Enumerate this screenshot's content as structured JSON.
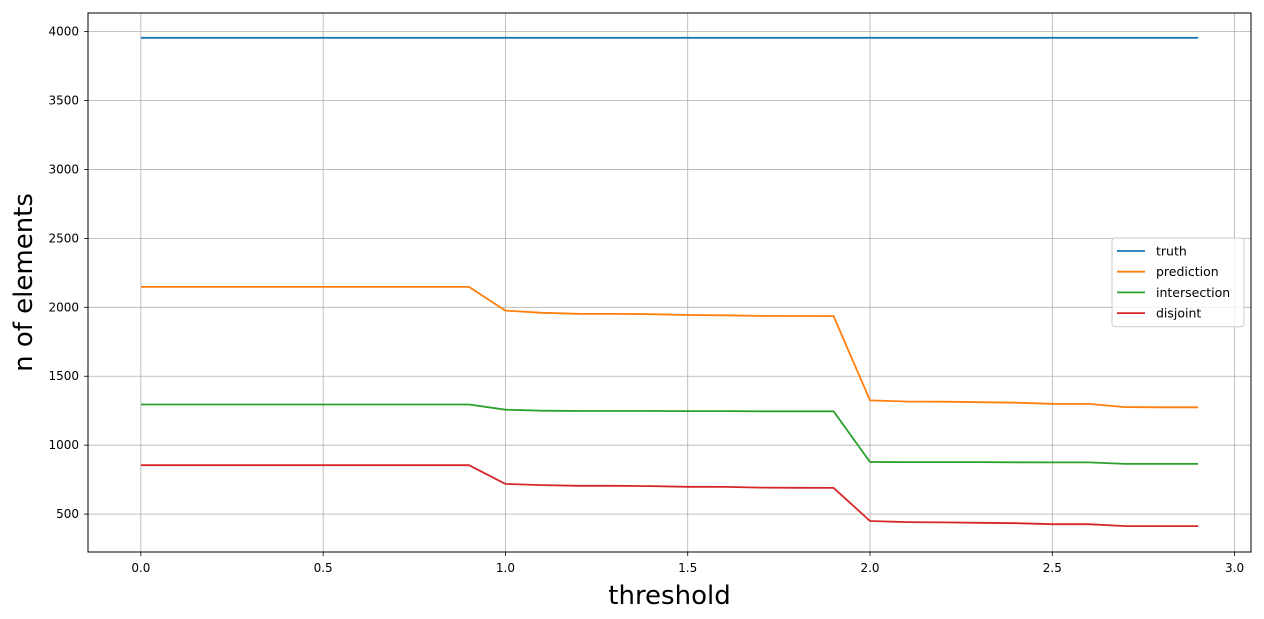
{
  "chart_data": {
    "type": "line",
    "title": "",
    "xlabel": "threshold",
    "ylabel": "n of elements",
    "xlim": [
      -0.145,
      3.045
    ],
    "ylim": [
      225,
      4135
    ],
    "xticks": [
      0.0,
      0.5,
      1.0,
      1.5,
      2.0,
      2.5,
      3.0
    ],
    "xtick_labels": [
      "0.0",
      "0.5",
      "1.0",
      "1.5",
      "2.0",
      "2.5",
      "3.0"
    ],
    "yticks": [
      500,
      1000,
      1500,
      2000,
      2500,
      3000,
      3500,
      4000
    ],
    "ytick_labels": [
      "500",
      "1000",
      "1500",
      "2000",
      "2500",
      "3000",
      "3500",
      "4000"
    ],
    "grid": true,
    "legend_position": "center-right",
    "x": [
      0.0,
      0.1,
      0.2,
      0.3,
      0.4,
      0.5,
      0.6,
      0.7,
      0.8,
      0.9,
      1.0,
      1.1,
      1.2,
      1.3,
      1.4,
      1.5,
      1.6,
      1.7,
      1.8,
      1.9,
      2.0,
      2.1,
      2.2,
      2.3,
      2.4,
      2.5,
      2.6,
      2.7,
      2.8,
      2.9
    ],
    "series": [
      {
        "name": "truth",
        "color": "#1f77b4",
        "values": [
          3955,
          3955,
          3955,
          3955,
          3955,
          3955,
          3955,
          3955,
          3955,
          3955,
          3955,
          3955,
          3955,
          3955,
          3955,
          3955,
          3955,
          3955,
          3955,
          3955,
          3955,
          3955,
          3955,
          3955,
          3955,
          3955,
          3955,
          3955,
          3955,
          3955
        ]
      },
      {
        "name": "prediction",
        "color": "#ff7f0e",
        "values": [
          2148,
          2148,
          2148,
          2148,
          2148,
          2148,
          2148,
          2148,
          2148,
          2148,
          1976,
          1960,
          1953,
          1952,
          1950,
          1944,
          1942,
          1938,
          1937,
          1936,
          1325,
          1317,
          1315,
          1312,
          1308,
          1300,
          1299,
          1276,
          1275,
          1275
        ]
      },
      {
        "name": "intersection",
        "color": "#2ca02c",
        "values": [
          1295,
          1295,
          1295,
          1295,
          1295,
          1295,
          1295,
          1295,
          1295,
          1295,
          1257,
          1250,
          1248,
          1248,
          1248,
          1247,
          1247,
          1246,
          1246,
          1246,
          878,
          877,
          877,
          877,
          876,
          875,
          875,
          864,
          864,
          864
        ]
      },
      {
        "name": "disjoint",
        "color": "#d62728",
        "values": [
          855,
          855,
          855,
          855,
          855,
          855,
          855,
          855,
          855,
          855,
          719,
          710,
          705,
          705,
          703,
          698,
          697,
          692,
          691,
          690,
          450,
          442,
          440,
          437,
          434,
          427,
          427,
          413,
          413,
          413
        ]
      }
    ]
  }
}
